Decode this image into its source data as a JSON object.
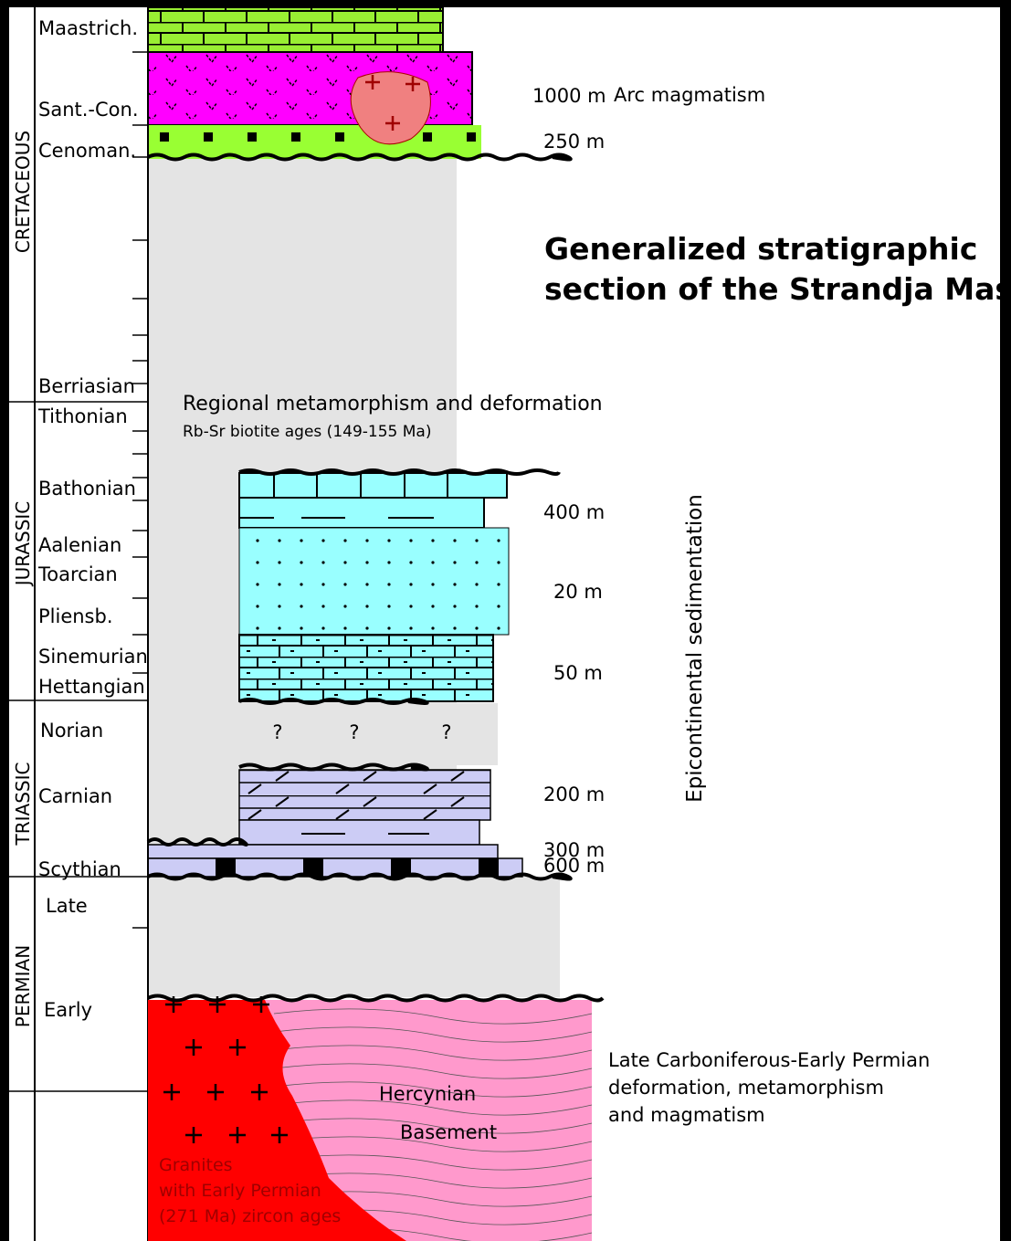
{
  "periods": [
    "CRETACEOUS",
    "JURASSIC",
    "TRIASSIC",
    "PERMIAN"
  ],
  "stages": [
    "Maastrich.",
    "Sant.-Con.",
    "Cenoman.",
    "Berriasian",
    "Tithonian",
    "Bathonian",
    "Aalenian",
    "Toarcian",
    "Pliensb.",
    "Sinemurian",
    "Hettangian",
    "Norian",
    "Carnian",
    "Scythian",
    "Late",
    "Early"
  ],
  "title": [
    "Generalized stratigraphic",
    "section of the Strandja Massif"
  ],
  "thicknesses": [
    "1000 m",
    "250 m",
    "400 m",
    "20 m",
    "50 m",
    "200 m",
    "300 m",
    "600 m"
  ],
  "annotations": {
    "arc": "Arc  magmatism",
    "metamorphism": "Regional metamorphism and deformation",
    "ages": "Rb-Sr biotite ages (149-155 Ma)",
    "sedimentation": "Epicontinental sedimentation",
    "question_marks": [
      "?",
      "?",
      "?"
    ],
    "hercynian_event": [
      "Late Carboniferous-Early Permian",
      "deformation, metamorphism",
      "and magmatism"
    ],
    "basement": [
      "Hercynian",
      "Basement"
    ],
    "granites": [
      "Granites",
      "with Early Permian",
      "(271 Ma) zircon ages"
    ]
  }
}
